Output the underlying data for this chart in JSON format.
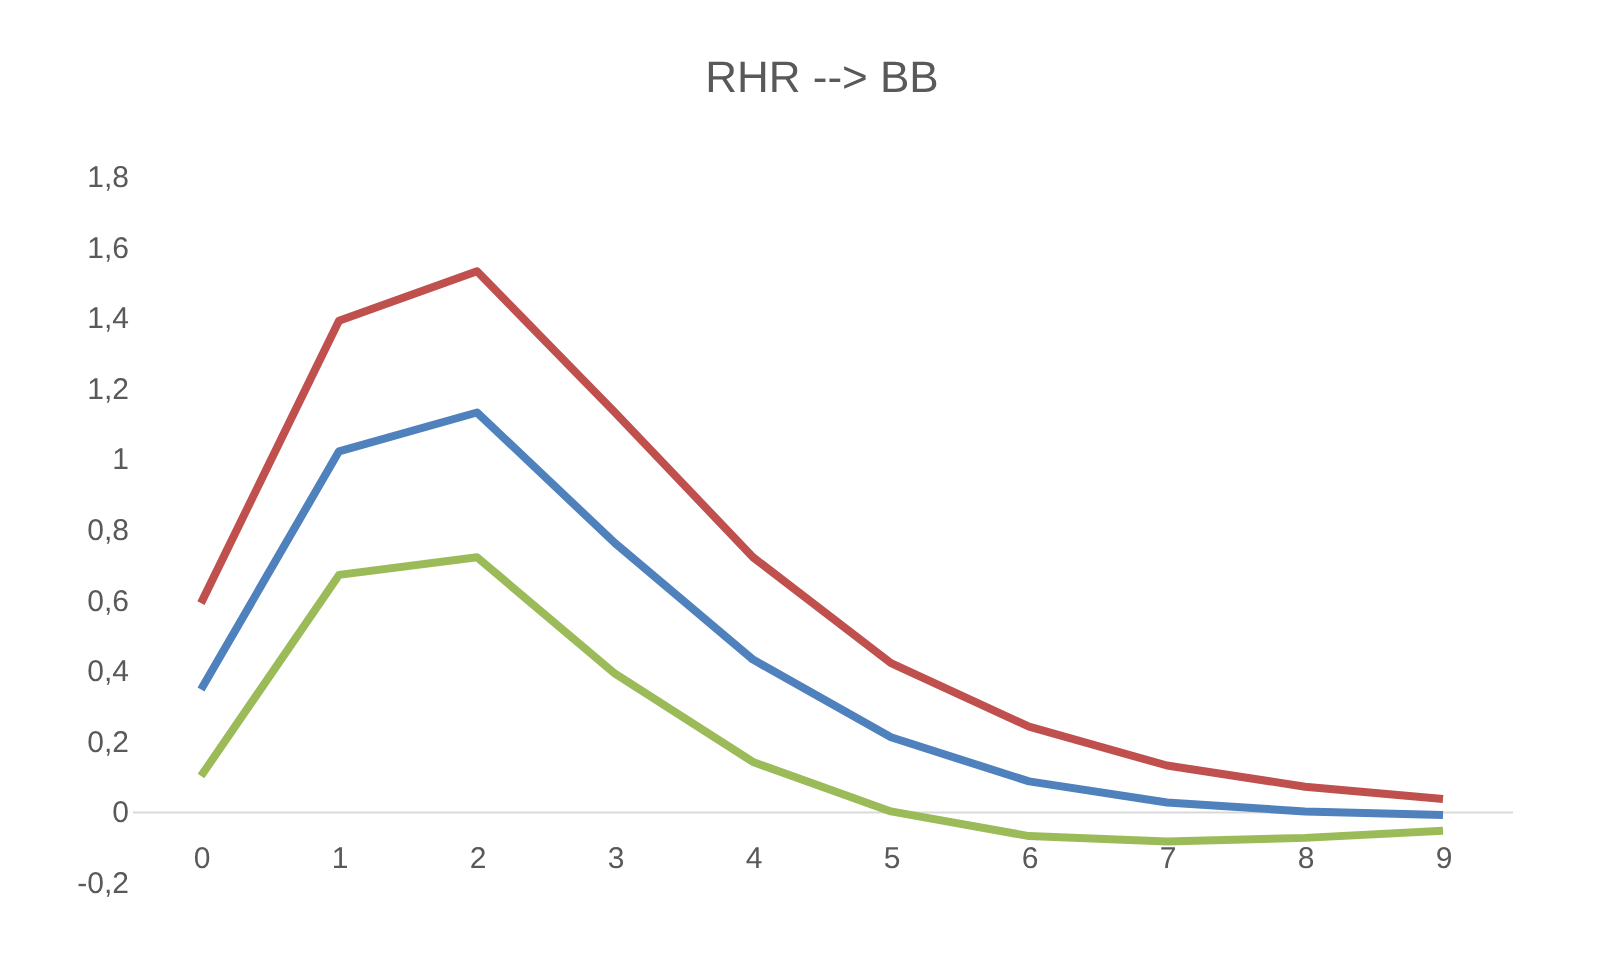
{
  "chart_data": {
    "type": "line",
    "title": "RHR --> BB",
    "categories": [
      "0",
      "1",
      "2",
      "3",
      "4",
      "5",
      "6",
      "7",
      "8",
      "9"
    ],
    "series": [
      {
        "color": "#c0504d",
        "values": [
          0.59,
          1.39,
          1.53,
          1.13,
          0.72,
          0.42,
          0.24,
          0.13,
          0.07,
          0.035
        ]
      },
      {
        "color": "#4f81bd",
        "values": [
          0.345,
          1.02,
          1.13,
          0.76,
          0.43,
          0.21,
          0.085,
          0.025,
          0.0,
          -0.01
        ]
      },
      {
        "color": "#9bbb59",
        "values": [
          0.1,
          0.67,
          0.72,
          0.39,
          0.14,
          0.0,
          -0.07,
          -0.085,
          -0.075,
          -0.055
        ]
      }
    ],
    "ylim": [
      -0.2,
      1.8
    ],
    "yticks": [
      {
        "value": -0.2,
        "label": "-0,2"
      },
      {
        "value": 0,
        "label": "0"
      },
      {
        "value": 0.2,
        "label": "0,2"
      },
      {
        "value": 0.4,
        "label": "0,4"
      },
      {
        "value": 0.6,
        "label": "0,6"
      },
      {
        "value": 0.8,
        "label": "0,8"
      },
      {
        "value": 1,
        "label": "1"
      },
      {
        "value": 1.2,
        "label": "1,2"
      },
      {
        "value": 1.4,
        "label": "1,4"
      },
      {
        "value": 1.6,
        "label": "1,6"
      },
      {
        "value": 1.8,
        "label": "1,8"
      }
    ],
    "grid": false,
    "legend": false,
    "marker": "none",
    "line_style": "solid"
  }
}
